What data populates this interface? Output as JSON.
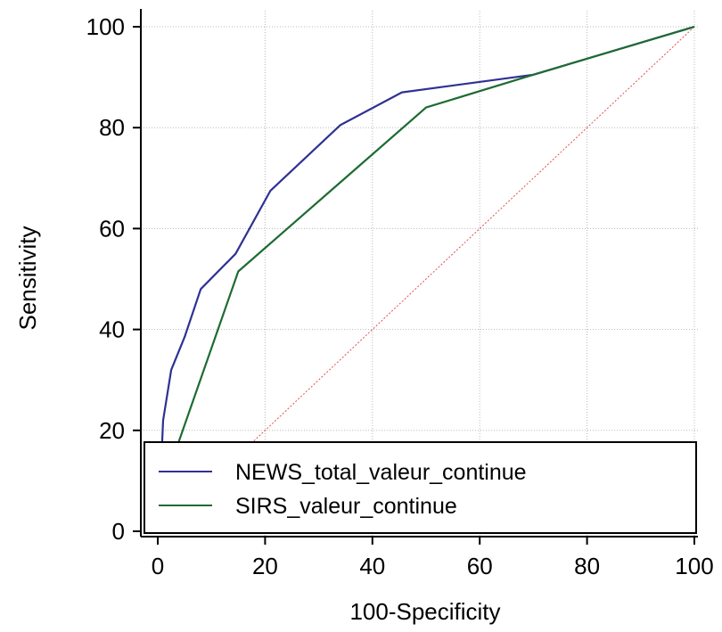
{
  "chart_data": {
    "type": "line",
    "title": "",
    "xlabel": "100-Specificity",
    "ylabel": "Sensitivity",
    "xlim": [
      0,
      100
    ],
    "ylim": [
      0,
      100
    ],
    "xticks": [
      0,
      20,
      40,
      60,
      80,
      100
    ],
    "yticks": [
      0,
      20,
      40,
      60,
      80,
      100
    ],
    "grid": true,
    "legend_position": "bottom",
    "series": [
      {
        "name": "NEWS_total_valeur_continue",
        "color": "#2e3192",
        "x": [
          0,
          0.5,
          1,
          2.5,
          5,
          8,
          14.5,
          21,
          34,
          45.5,
          70,
          100
        ],
        "y": [
          0,
          10,
          22,
          32,
          38.5,
          48,
          55,
          67.5,
          80.5,
          87,
          90.5,
          100
        ]
      },
      {
        "name": "SIRS_valeur_continue",
        "color": "#1e6b32",
        "x": [
          0,
          3,
          15,
          50,
          70,
          100
        ],
        "y": [
          0,
          15,
          51.5,
          84,
          90.5,
          100
        ]
      },
      {
        "name": "",
        "color": "#e05050",
        "x": [
          0,
          100
        ],
        "y": [
          0,
          100
        ],
        "reference": true
      }
    ]
  }
}
